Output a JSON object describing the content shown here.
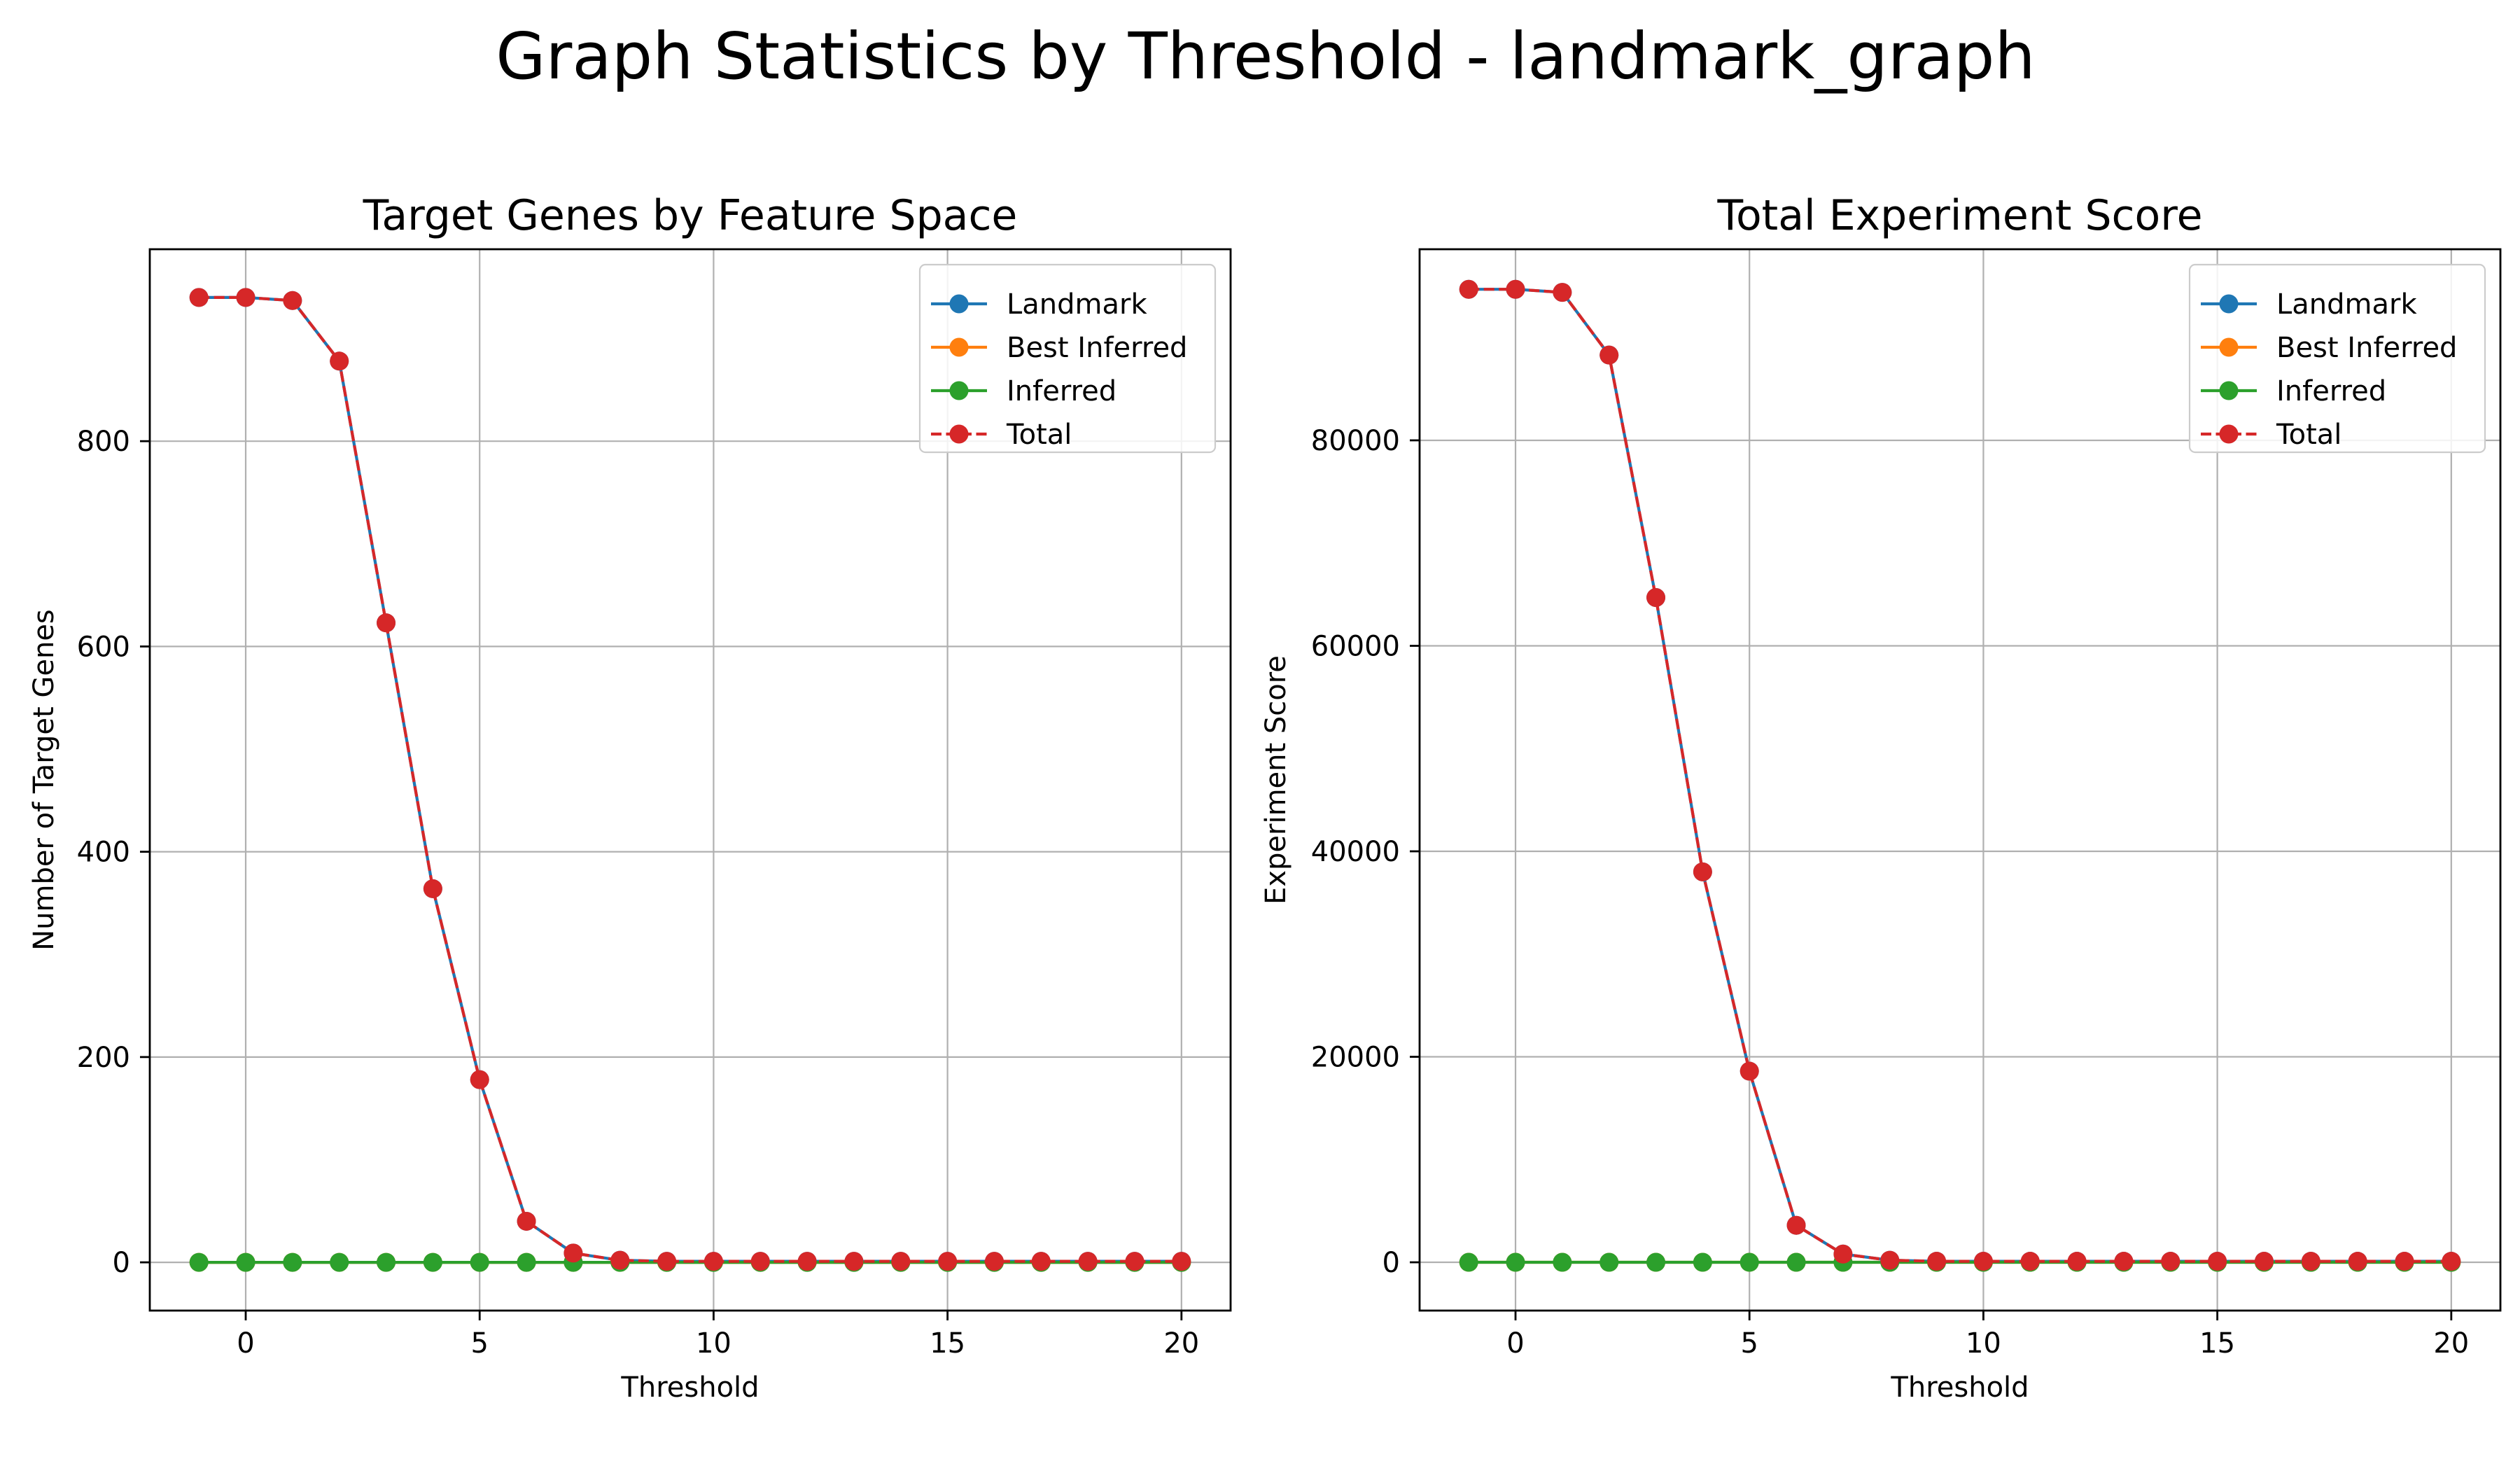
{
  "figure": {
    "suptitle": "Graph Statistics by Threshold - landmark_graph"
  },
  "chart_data": [
    {
      "type": "line",
      "title": "Target Genes by Feature Space",
      "xlabel": "Threshold",
      "ylabel": "Number of Target Genes",
      "xlim": [
        -2.05,
        21.05
      ],
      "ylim": [
        -47,
        987
      ],
      "xticks": [
        0,
        5,
        10,
        15,
        20
      ],
      "yticks": [
        0,
        200,
        400,
        600,
        800
      ],
      "grid": true,
      "legend": "top-right",
      "x": [
        -1,
        0,
        1,
        2,
        3,
        4,
        5,
        6,
        7,
        8,
        9,
        10,
        11,
        12,
        13,
        14,
        15,
        16,
        17,
        18,
        19,
        20
      ],
      "series": [
        {
          "name": "Landmark",
          "color": "#1f77b4",
          "style": "solid",
          "marker": "circle",
          "values": [
            940,
            940,
            937,
            878,
            623,
            364,
            178,
            40,
            9,
            2,
            1,
            1,
            1,
            1,
            1,
            1,
            1,
            1,
            1,
            1,
            1,
            1
          ]
        },
        {
          "name": "Best Inferred",
          "color": "#ff7f0e",
          "style": "solid",
          "marker": "circle",
          "values": [
            0,
            0,
            0,
            0,
            0,
            0,
            0,
            0,
            0,
            0,
            0,
            0,
            0,
            0,
            0,
            0,
            0,
            0,
            0,
            0,
            0,
            0
          ]
        },
        {
          "name": "Inferred",
          "color": "#2ca02c",
          "style": "solid",
          "marker": "circle",
          "values": [
            0,
            0,
            0,
            0,
            0,
            0,
            0,
            0,
            0,
            0,
            0,
            0,
            0,
            0,
            0,
            0,
            0,
            0,
            0,
            0,
            0,
            0
          ]
        },
        {
          "name": "Total",
          "color": "#d62728",
          "style": "dashed",
          "marker": "circle",
          "values": [
            940,
            940,
            937,
            878,
            623,
            364,
            178,
            40,
            9,
            2,
            1,
            1,
            1,
            1,
            1,
            1,
            1,
            1,
            1,
            1,
            1,
            1
          ]
        }
      ]
    },
    {
      "type": "line",
      "title": "Total Experiment Score",
      "xlabel": "Threshold",
      "ylabel": "Experiment Score",
      "xlim": [
        -2.05,
        21.05
      ],
      "ylim": [
        -4700,
        98600
      ],
      "xticks": [
        0,
        5,
        10,
        15,
        20
      ],
      "yticks": [
        0,
        20000,
        40000,
        60000,
        80000
      ],
      "grid": true,
      "legend": "top-right",
      "x": [
        -1,
        0,
        1,
        2,
        3,
        4,
        5,
        6,
        7,
        8,
        9,
        10,
        11,
        12,
        13,
        14,
        15,
        16,
        17,
        18,
        19,
        20
      ],
      "series": [
        {
          "name": "Landmark",
          "color": "#1f77b4",
          "style": "solid",
          "marker": "circle",
          "values": [
            94700,
            94700,
            94400,
            88300,
            64700,
            38000,
            18600,
            3600,
            800,
            200,
            100,
            100,
            100,
            100,
            100,
            100,
            100,
            100,
            100,
            100,
            100,
            100
          ]
        },
        {
          "name": "Best Inferred",
          "color": "#ff7f0e",
          "style": "solid",
          "marker": "circle",
          "values": [
            0,
            0,
            0,
            0,
            0,
            0,
            0,
            0,
            0,
            0,
            0,
            0,
            0,
            0,
            0,
            0,
            0,
            0,
            0,
            0,
            0,
            0
          ]
        },
        {
          "name": "Inferred",
          "color": "#2ca02c",
          "style": "solid",
          "marker": "circle",
          "values": [
            0,
            0,
            0,
            0,
            0,
            0,
            0,
            0,
            0,
            0,
            0,
            0,
            0,
            0,
            0,
            0,
            0,
            0,
            0,
            0,
            0,
            0
          ]
        },
        {
          "name": "Total",
          "color": "#d62728",
          "style": "dashed",
          "marker": "circle",
          "values": [
            94700,
            94700,
            94400,
            88300,
            64700,
            38000,
            18600,
            3600,
            800,
            200,
            100,
            100,
            100,
            100,
            100,
            100,
            100,
            100,
            100,
            100,
            100,
            100
          ]
        }
      ]
    }
  ]
}
